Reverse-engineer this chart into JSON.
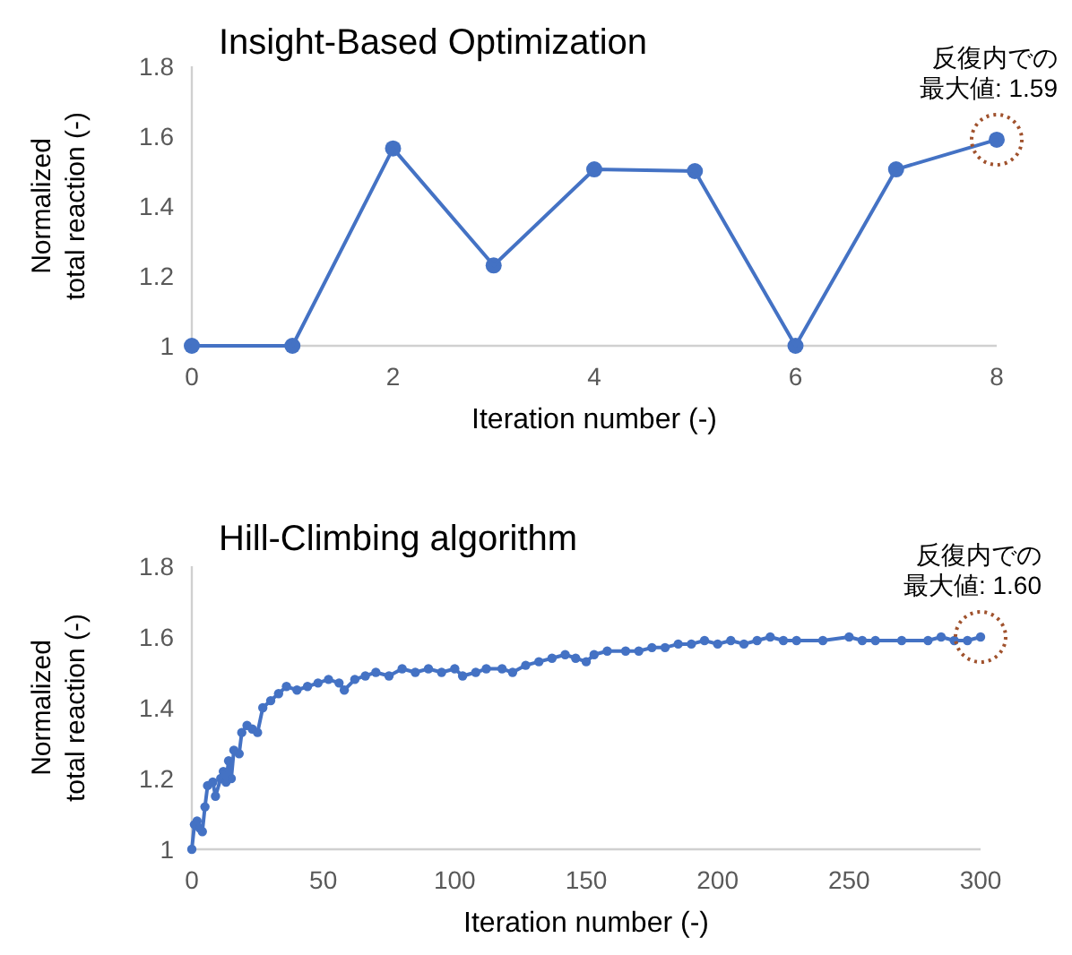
{
  "chart_data": [
    {
      "type": "line",
      "title": "Insight-Based Optimization",
      "xlabel": "Iteration number (-)",
      "ylabel": "Normalized\ntotal reaction (-)",
      "x": [
        0,
        1,
        2,
        3,
        4,
        5,
        6,
        7,
        8
      ],
      "series": [
        {
          "color": "#4472c4",
          "values": [
            1,
            1,
            1.565,
            1.23,
            1.505,
            1.5,
            1,
            1.505,
            1.59
          ]
        }
      ],
      "xlim": [
        0,
        8
      ],
      "xticks": [
        0,
        2,
        4,
        6,
        8
      ],
      "ylim": [
        1,
        1.8
      ],
      "yticks": [
        1,
        1.2,
        1.4,
        1.6,
        1.8
      ],
      "grid": false,
      "marker": "circle",
      "line_style": "solid",
      "annotations": [
        {
          "text": "反復内での最大値: 1.59",
          "x": 8,
          "y": 1.59
        }
      ]
    },
    {
      "type": "line",
      "title": "Hill-Climbing algorithm",
      "xlabel": "Iteration number (-)",
      "ylabel": "Normalized\ntotal reaction (-)",
      "x": [
        0,
        1,
        2,
        3,
        4,
        5,
        6,
        8,
        9,
        11,
        12,
        13,
        14,
        15,
        16,
        18,
        19,
        21,
        23,
        25,
        27,
        30,
        33,
        36,
        40,
        44,
        48,
        52,
        56,
        58,
        62,
        66,
        70,
        75,
        80,
        85,
        90,
        95,
        100,
        103,
        108,
        112,
        118,
        122,
        127,
        132,
        137,
        142,
        146,
        150,
        153,
        158,
        165,
        170,
        175,
        180,
        185,
        190,
        195,
        200,
        205,
        210,
        215,
        220,
        225,
        230,
        240,
        250,
        255,
        260,
        270,
        280,
        285,
        290,
        295,
        300
      ],
      "series": [
        {
          "color": "#4472c4",
          "values": [
            1.0,
            1.07,
            1.08,
            1.06,
            1.05,
            1.12,
            1.18,
            1.19,
            1.15,
            1.2,
            1.22,
            1.19,
            1.25,
            1.2,
            1.28,
            1.27,
            1.33,
            1.35,
            1.34,
            1.33,
            1.4,
            1.42,
            1.44,
            1.46,
            1.45,
            1.46,
            1.47,
            1.48,
            1.47,
            1.45,
            1.48,
            1.49,
            1.5,
            1.49,
            1.51,
            1.5,
            1.51,
            1.5,
            1.51,
            1.49,
            1.5,
            1.51,
            1.51,
            1.5,
            1.52,
            1.53,
            1.54,
            1.55,
            1.54,
            1.53,
            1.55,
            1.56,
            1.56,
            1.56,
            1.57,
            1.57,
            1.58,
            1.58,
            1.59,
            1.58,
            1.59,
            1.58,
            1.59,
            1.6,
            1.59,
            1.59,
            1.59,
            1.6,
            1.59,
            1.59,
            1.59,
            1.59,
            1.6,
            1.59,
            1.59,
            1.6
          ]
        }
      ],
      "xlim": [
        0,
        300
      ],
      "xticks": [
        0,
        50,
        100,
        150,
        200,
        250,
        300
      ],
      "ylim": [
        1,
        1.8
      ],
      "yticks": [
        1,
        1.2,
        1.4,
        1.6,
        1.8
      ],
      "grid": false,
      "marker": "circle",
      "line_style": "solid",
      "annotations": [
        {
          "text": "反復内での最大値: 1.60",
          "x": 300,
          "y": 1.6
        }
      ]
    }
  ]
}
